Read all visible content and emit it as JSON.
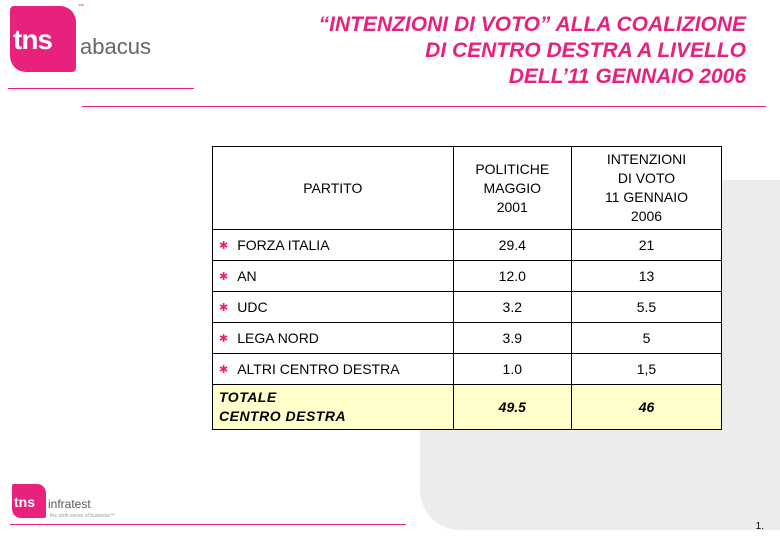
{
  "brand": {
    "logo_mark": "tns",
    "logo_name": "abacus",
    "logo_tm": "™",
    "footer_logo_mark": "tns",
    "footer_logo_name": "infratest",
    "footer_tagline": "the sixth sense of business™",
    "accent_color": "#e8217c"
  },
  "title": {
    "line1": "“INTENZIONI DI VOTO” ALLA COALIZIONE",
    "line2": "DI CENTRO DESTRA A LIVELLO",
    "line3": "DELL’11 GENNAIO 2006"
  },
  "table": {
    "headers": {
      "col1": "PARTITO",
      "col2_l1": "POLITICHE",
      "col2_l2": "MAGGIO",
      "col2_l3": "2001",
      "col3_l1": "INTENZIONI",
      "col3_l2": "DI VOTO",
      "col3_l3": "11 GENNAIO",
      "col3_l4": "2006"
    },
    "rows": [
      {
        "party": "FORZA ITALIA",
        "v2001": "29.4",
        "v2006": "21"
      },
      {
        "party": "AN",
        "v2001": "12.0",
        "v2006": "13"
      },
      {
        "party": "UDC",
        "v2001": "3.2",
        "v2006": "5.5"
      },
      {
        "party": "LEGA NORD",
        "v2001": "3.9",
        "v2006": "5"
      },
      {
        "party": "ALTRI CENTRO DESTRA",
        "v2001": "1.0",
        "v2006": "1,5"
      }
    ],
    "total": {
      "label_l1": "TOTALE",
      "label_l2": "CENTRO DESTRA",
      "v2001": "49.5",
      "v2006": "46"
    }
  },
  "page_number": "1."
}
